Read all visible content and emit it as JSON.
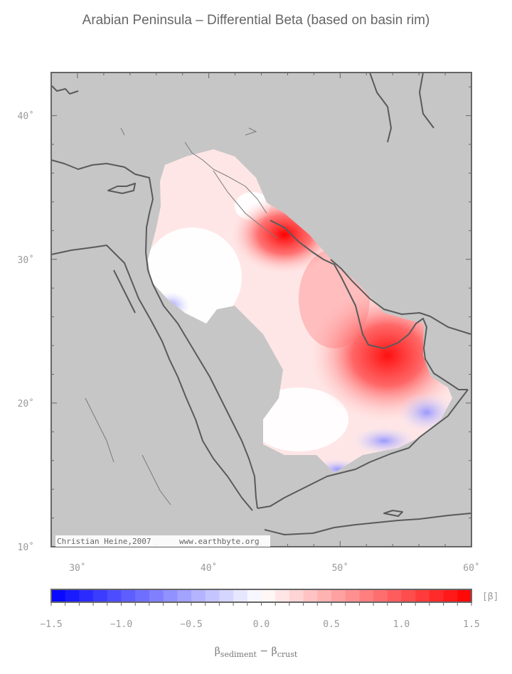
{
  "title": "Arabian Peninsula – Differential Beta (based on basin rim)",
  "map": {
    "lon_range": [
      28,
      60
    ],
    "lat_range": [
      10,
      43
    ],
    "lon_ticks": [
      {
        "value": 30,
        "label": "30˚"
      },
      {
        "value": 40,
        "label": "40˚"
      },
      {
        "value": 50,
        "label": "50˚"
      },
      {
        "value": 60,
        "label": "60˚"
      }
    ],
    "lat_ticks": [
      {
        "value": 10,
        "label": "10˚"
      },
      {
        "value": 20,
        "label": "20˚"
      },
      {
        "value": 30,
        "label": "30˚"
      },
      {
        "value": 40,
        "label": "40˚"
      }
    ],
    "land_color": "#c6c6c6",
    "coastline_color": "#5a5a5a",
    "credit_left": "Christian Heine,2007",
    "credit_right": "www.earthbyte.org"
  },
  "colorbar": {
    "min": -1.5,
    "max": 1.5,
    "unit": "[β]",
    "low_color": "#0000ff",
    "mid_color": "#ffffff",
    "high_color": "#ff0000",
    "ticks": [
      {
        "value": -1.5,
        "label": "−1.5"
      },
      {
        "value": -1.0,
        "label": "−1.0"
      },
      {
        "value": -0.5,
        "label": "−0.5"
      },
      {
        "value": 0.0,
        "label": "0.0"
      },
      {
        "value": 0.5,
        "label": "0.5"
      },
      {
        "value": 1.0,
        "label": "1.0"
      },
      {
        "value": 1.5,
        "label": "1.5"
      }
    ]
  },
  "xlabel": {
    "beta1": "β",
    "sub1": "sediment",
    "dash": " − ",
    "beta2": "β",
    "sub2": "crust"
  }
}
